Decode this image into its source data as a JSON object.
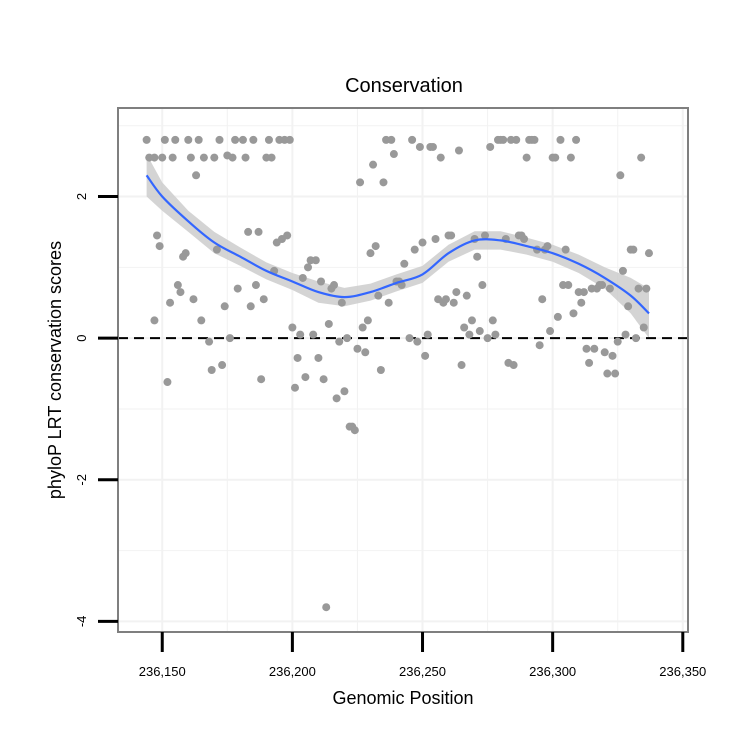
{
  "chart_data": {
    "type": "scatter",
    "title": "Conservation",
    "xlabel": "Genomic Position",
    "ylabel": "phyloP LRT conservation scores",
    "xlim": [
      236133,
      236352
    ],
    "ylim": [
      -4.15,
      3.25
    ],
    "x_ticks": [
      236150,
      236200,
      236250,
      236300,
      236350
    ],
    "x_tick_labels": [
      "236,150",
      "236,200",
      "236,250",
      "236,300",
      "236,350"
    ],
    "y_ticks": [
      -4,
      -2,
      0,
      2
    ],
    "y_tick_labels": [
      "-4",
      "-2",
      "0",
      "2"
    ],
    "grid": true,
    "colors": {
      "points": "#999999",
      "smooth_line": "#3366ff",
      "confidence_band": "#cccccc",
      "reference_line": "#000000",
      "frame": "#7f7f7f",
      "grid": "#f2f2f2"
    },
    "reference_line": {
      "y": 0,
      "style": "dashed"
    },
    "points": [
      {
        "x": 236144,
        "y": 2.8
      },
      {
        "x": 236145,
        "y": 2.55
      },
      {
        "x": 236147,
        "y": 2.55
      },
      {
        "x": 236147,
        "y": 0.25
      },
      {
        "x": 236148,
        "y": 1.45
      },
      {
        "x": 236149,
        "y": 1.3
      },
      {
        "x": 236150,
        "y": 2.55
      },
      {
        "x": 236151,
        "y": 2.8
      },
      {
        "x": 236152,
        "y": -0.62
      },
      {
        "x": 236153,
        "y": 0.5
      },
      {
        "x": 236154,
        "y": 2.55
      },
      {
        "x": 236155,
        "y": 2.8
      },
      {
        "x": 236156,
        "y": 0.75
      },
      {
        "x": 236157,
        "y": 0.65
      },
      {
        "x": 236158,
        "y": 1.15
      },
      {
        "x": 236159,
        "y": 1.2
      },
      {
        "x": 236160,
        "y": 2.8
      },
      {
        "x": 236161,
        "y": 2.55
      },
      {
        "x": 236162,
        "y": 0.55
      },
      {
        "x": 236163,
        "y": 2.3
      },
      {
        "x": 236164,
        "y": 2.8
      },
      {
        "x": 236165,
        "y": 0.25
      },
      {
        "x": 236166,
        "y": 2.55
      },
      {
        "x": 236168,
        "y": -0.05
      },
      {
        "x": 236169,
        "y": -0.45
      },
      {
        "x": 236170,
        "y": 2.55
      },
      {
        "x": 236171,
        "y": 1.25
      },
      {
        "x": 236172,
        "y": 2.8
      },
      {
        "x": 236173,
        "y": -0.38
      },
      {
        "x": 236174,
        "y": 0.45
      },
      {
        "x": 236175,
        "y": 2.58
      },
      {
        "x": 236176,
        "y": 0.0
      },
      {
        "x": 236177,
        "y": 2.55
      },
      {
        "x": 236178,
        "y": 2.8
      },
      {
        "x": 236179,
        "y": 0.7
      },
      {
        "x": 236181,
        "y": 2.8
      },
      {
        "x": 236182,
        "y": 2.55
      },
      {
        "x": 236183,
        "y": 1.5
      },
      {
        "x": 236184,
        "y": 0.45
      },
      {
        "x": 236185,
        "y": 2.8
      },
      {
        "x": 236186,
        "y": 0.75
      },
      {
        "x": 236187,
        "y": 1.5
      },
      {
        "x": 236188,
        "y": -0.58
      },
      {
        "x": 236189,
        "y": 0.55
      },
      {
        "x": 236190,
        "y": 2.55
      },
      {
        "x": 236191,
        "y": 2.8
      },
      {
        "x": 236192,
        "y": 2.55
      },
      {
        "x": 236193,
        "y": 0.95
      },
      {
        "x": 236194,
        "y": 1.35
      },
      {
        "x": 236195,
        "y": 2.8
      },
      {
        "x": 236196,
        "y": 1.4
      },
      {
        "x": 236197,
        "y": 2.8
      },
      {
        "x": 236198,
        "y": 1.45
      },
      {
        "x": 236199,
        "y": 2.8
      },
      {
        "x": 236200,
        "y": 0.15
      },
      {
        "x": 236201,
        "y": -0.7
      },
      {
        "x": 236202,
        "y": -0.28
      },
      {
        "x": 236203,
        "y": 0.05
      },
      {
        "x": 236204,
        "y": 0.85
      },
      {
        "x": 236205,
        "y": -0.55
      },
      {
        "x": 236206,
        "y": 1.0
      },
      {
        "x": 236207,
        "y": 1.1
      },
      {
        "x": 236208,
        "y": 0.05
      },
      {
        "x": 236209,
        "y": 1.1
      },
      {
        "x": 236210,
        "y": -0.28
      },
      {
        "x": 236211,
        "y": 0.8
      },
      {
        "x": 236212,
        "y": -0.58
      },
      {
        "x": 236213,
        "y": -3.8
      },
      {
        "x": 236214,
        "y": 0.2
      },
      {
        "x": 236215,
        "y": 0.7
      },
      {
        "x": 236216,
        "y": 0.75
      },
      {
        "x": 236217,
        "y": -0.85
      },
      {
        "x": 236218,
        "y": -0.05
      },
      {
        "x": 236219,
        "y": 0.5
      },
      {
        "x": 236220,
        "y": -0.75
      },
      {
        "x": 236221,
        "y": 0.0
      },
      {
        "x": 236222,
        "y": -1.25
      },
      {
        "x": 236223,
        "y": -1.25
      },
      {
        "x": 236224,
        "y": -1.3
      },
      {
        "x": 236225,
        "y": -0.15
      },
      {
        "x": 236226,
        "y": 2.2
      },
      {
        "x": 236227,
        "y": 0.15
      },
      {
        "x": 236228,
        "y": -0.2
      },
      {
        "x": 236229,
        "y": 0.25
      },
      {
        "x": 236230,
        "y": 1.2
      },
      {
        "x": 236231,
        "y": 2.45
      },
      {
        "x": 236232,
        "y": 1.3
      },
      {
        "x": 236233,
        "y": 0.6
      },
      {
        "x": 236234,
        "y": -0.45
      },
      {
        "x": 236235,
        "y": 2.2
      },
      {
        "x": 236236,
        "y": 2.8
      },
      {
        "x": 236237,
        "y": 0.5
      },
      {
        "x": 236238,
        "y": 2.8
      },
      {
        "x": 236239,
        "y": 2.6
      },
      {
        "x": 236240,
        "y": 0.8
      },
      {
        "x": 236241,
        "y": 0.8
      },
      {
        "x": 236242,
        "y": 0.75
      },
      {
        "x": 236243,
        "y": 1.05
      },
      {
        "x": 236245,
        "y": 0.0
      },
      {
        "x": 236246,
        "y": 2.8
      },
      {
        "x": 236247,
        "y": 1.25
      },
      {
        "x": 236248,
        "y": -0.05
      },
      {
        "x": 236249,
        "y": 2.7
      },
      {
        "x": 236250,
        "y": 1.35
      },
      {
        "x": 236251,
        "y": -0.25
      },
      {
        "x": 236252,
        "y": 0.05
      },
      {
        "x": 236253,
        "y": 2.7
      },
      {
        "x": 236254,
        "y": 2.7
      },
      {
        "x": 236255,
        "y": 1.4
      },
      {
        "x": 236256,
        "y": 0.55
      },
      {
        "x": 236257,
        "y": 2.55
      },
      {
        "x": 236258,
        "y": 0.5
      },
      {
        "x": 236259,
        "y": 0.55
      },
      {
        "x": 236260,
        "y": 1.45
      },
      {
        "x": 236261,
        "y": 1.45
      },
      {
        "x": 236262,
        "y": 0.5
      },
      {
        "x": 236263,
        "y": 0.65
      },
      {
        "x": 236264,
        "y": 2.65
      },
      {
        "x": 236265,
        "y": -0.38
      },
      {
        "x": 236266,
        "y": 0.15
      },
      {
        "x": 236267,
        "y": 0.6
      },
      {
        "x": 236268,
        "y": 0.05
      },
      {
        "x": 236269,
        "y": 0.25
      },
      {
        "x": 236270,
        "y": 1.4
      },
      {
        "x": 236271,
        "y": 1.15
      },
      {
        "x": 236272,
        "y": 0.1
      },
      {
        "x": 236273,
        "y": 0.75
      },
      {
        "x": 236274,
        "y": 1.45
      },
      {
        "x": 236275,
        "y": 0.0
      },
      {
        "x": 236276,
        "y": 2.7
      },
      {
        "x": 236277,
        "y": 0.25
      },
      {
        "x": 236278,
        "y": 0.05
      },
      {
        "x": 236279,
        "y": 2.8
      },
      {
        "x": 236280,
        "y": 2.8
      },
      {
        "x": 236281,
        "y": 2.8
      },
      {
        "x": 236282,
        "y": 1.4
      },
      {
        "x": 236283,
        "y": -0.35
      },
      {
        "x": 236284,
        "y": 2.8
      },
      {
        "x": 236285,
        "y": -0.38
      },
      {
        "x": 236286,
        "y": 2.8
      },
      {
        "x": 236287,
        "y": 1.45
      },
      {
        "x": 236288,
        "y": 1.45
      },
      {
        "x": 236289,
        "y": 1.4
      },
      {
        "x": 236290,
        "y": 2.55
      },
      {
        "x": 236291,
        "y": 2.8
      },
      {
        "x": 236292,
        "y": 2.8
      },
      {
        "x": 236293,
        "y": 2.8
      },
      {
        "x": 236294,
        "y": 1.25
      },
      {
        "x": 236295,
        "y": -0.1
      },
      {
        "x": 236296,
        "y": 0.55
      },
      {
        "x": 236297,
        "y": 1.25
      },
      {
        "x": 236298,
        "y": 1.3
      },
      {
        "x": 236299,
        "y": 0.1
      },
      {
        "x": 236300,
        "y": 2.55
      },
      {
        "x": 236301,
        "y": 2.55
      },
      {
        "x": 236302,
        "y": 0.3
      },
      {
        "x": 236303,
        "y": 2.8
      },
      {
        "x": 236304,
        "y": 0.75
      },
      {
        "x": 236305,
        "y": 1.25
      },
      {
        "x": 236306,
        "y": 0.75
      },
      {
        "x": 236307,
        "y": 2.55
      },
      {
        "x": 236308,
        "y": 0.35
      },
      {
        "x": 236309,
        "y": 2.8
      },
      {
        "x": 236310,
        "y": 0.65
      },
      {
        "x": 236311,
        "y": 0.5
      },
      {
        "x": 236312,
        "y": 0.65
      },
      {
        "x": 236313,
        "y": -0.15
      },
      {
        "x": 236314,
        "y": -0.35
      },
      {
        "x": 236315,
        "y": 0.7
      },
      {
        "x": 236316,
        "y": -0.15
      },
      {
        "x": 236317,
        "y": 0.7
      },
      {
        "x": 236318,
        "y": 0.75
      },
      {
        "x": 236319,
        "y": 0.75
      },
      {
        "x": 236320,
        "y": -0.2
      },
      {
        "x": 236321,
        "y": -0.5
      },
      {
        "x": 236322,
        "y": 0.7
      },
      {
        "x": 236323,
        "y": -0.25
      },
      {
        "x": 236324,
        "y": -0.5
      },
      {
        "x": 236325,
        "y": -0.05
      },
      {
        "x": 236326,
        "y": 2.3
      },
      {
        "x": 236327,
        "y": 0.95
      },
      {
        "x": 236328,
        "y": 0.05
      },
      {
        "x": 236329,
        "y": 0.45
      },
      {
        "x": 236330,
        "y": 1.25
      },
      {
        "x": 236331,
        "y": 1.25
      },
      {
        "x": 236332,
        "y": 0.0
      },
      {
        "x": 236333,
        "y": 0.7
      },
      {
        "x": 236334,
        "y": 2.55
      },
      {
        "x": 236335,
        "y": 0.15
      },
      {
        "x": 236336,
        "y": 0.7
      },
      {
        "x": 236337,
        "y": 1.2
      }
    ],
    "smooth": {
      "x": [
        236144,
        236150,
        236160,
        236170,
        236180,
        236190,
        236200,
        236210,
        236220,
        236230,
        236240,
        236250,
        236260,
        236270,
        236280,
        236290,
        236300,
        236310,
        236320,
        236330,
        236337
      ],
      "y": [
        2.3,
        2.0,
        1.65,
        1.35,
        1.15,
        0.95,
        0.8,
        0.65,
        0.58,
        0.65,
        0.78,
        0.9,
        1.2,
        1.38,
        1.38,
        1.3,
        1.2,
        1.05,
        0.85,
        0.6,
        0.35
      ],
      "lower": [
        2.0,
        1.8,
        1.5,
        1.2,
        1.02,
        0.83,
        0.68,
        0.5,
        0.45,
        0.53,
        0.66,
        0.78,
        1.08,
        1.25,
        1.25,
        1.18,
        1.08,
        0.92,
        0.7,
        0.35,
        0.0
      ],
      "upper": [
        2.6,
        2.2,
        1.8,
        1.5,
        1.28,
        1.07,
        0.92,
        0.8,
        0.71,
        0.77,
        0.9,
        1.02,
        1.32,
        1.51,
        1.51,
        1.42,
        1.32,
        1.18,
        1.0,
        0.85,
        0.7
      ]
    }
  }
}
